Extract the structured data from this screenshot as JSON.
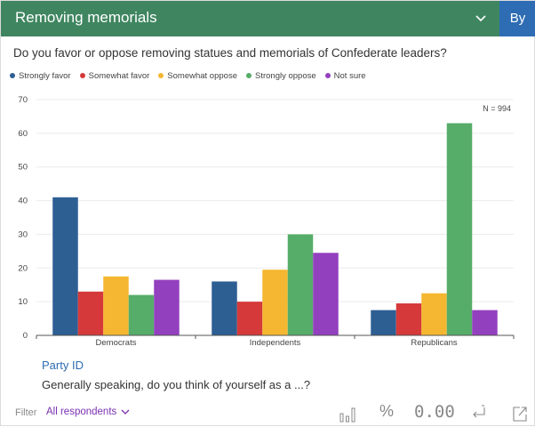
{
  "header": {
    "title": "Removing memorials",
    "by_label": "By"
  },
  "question": "Do you favor or oppose removing statues and memorials of Confederate leaders?",
  "legend": [
    {
      "label": "Strongly favor",
      "color": "#2d5f93"
    },
    {
      "label": "Somewhat favor",
      "color": "#d63939"
    },
    {
      "label": "Somewhat oppose",
      "color": "#f5b731"
    },
    {
      "label": "Strongly oppose",
      "color": "#56ad69"
    },
    {
      "label": "Not sure",
      "color": "#9340bf"
    }
  ],
  "chart_data": {
    "type": "bar",
    "title": "",
    "xlabel": "Party ID",
    "ylabel": "",
    "annotation": "N = 994",
    "ylim": [
      0,
      70
    ],
    "yticks": [
      0,
      10,
      20,
      30,
      40,
      50,
      60,
      70
    ],
    "categories": [
      "Democrats",
      "Independents",
      "Republicans"
    ],
    "series": [
      {
        "name": "Strongly favor",
        "values": [
          41,
          16,
          7.5
        ]
      },
      {
        "name": "Somewhat favor",
        "values": [
          13,
          10,
          9.5
        ]
      },
      {
        "name": "Somewhat oppose",
        "values": [
          17.5,
          19.5,
          12.5
        ]
      },
      {
        "name": "Strongly oppose",
        "values": [
          12,
          30,
          63
        ]
      },
      {
        "name": "Not sure",
        "values": [
          16.5,
          24.5,
          7.5
        ]
      }
    ]
  },
  "axis_title": "Party ID",
  "axis_subtitle": "Generally speaking, do you think of yourself as a ...?",
  "footer": {
    "filter_label": "Filter",
    "filter_value": "All respondents",
    "percent_label": "%",
    "decimals_label": "0.00"
  }
}
